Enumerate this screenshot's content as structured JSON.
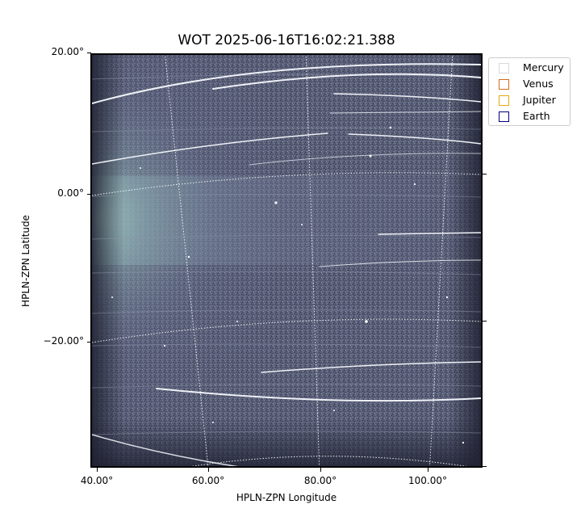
{
  "title": "WOT 2025-06-16T16:02:21.388",
  "axes": {
    "xlabel": "HPLN-ZPN Longitude",
    "ylabel": "HPLN-ZPN Latitude",
    "xticks": [
      "40.00°",
      "60.00°",
      "80.00°",
      "100.00°"
    ],
    "yticks": [
      "20.00°",
      "0.00°",
      "−20.00°"
    ]
  },
  "legend": {
    "items": [
      {
        "label": "Mercury",
        "color": "#d9d9d9"
      },
      {
        "label": "Venus",
        "color": "#d2691e"
      },
      {
        "label": "Jupiter",
        "color": "#e6a817"
      },
      {
        "label": "Earth",
        "color": "#000080"
      }
    ]
  },
  "image": {
    "description_colors": {
      "background": "#5a5f78",
      "glow": "#9fc7c0",
      "streak": "#e8ecf2",
      "grid": "#ffffff"
    }
  }
}
